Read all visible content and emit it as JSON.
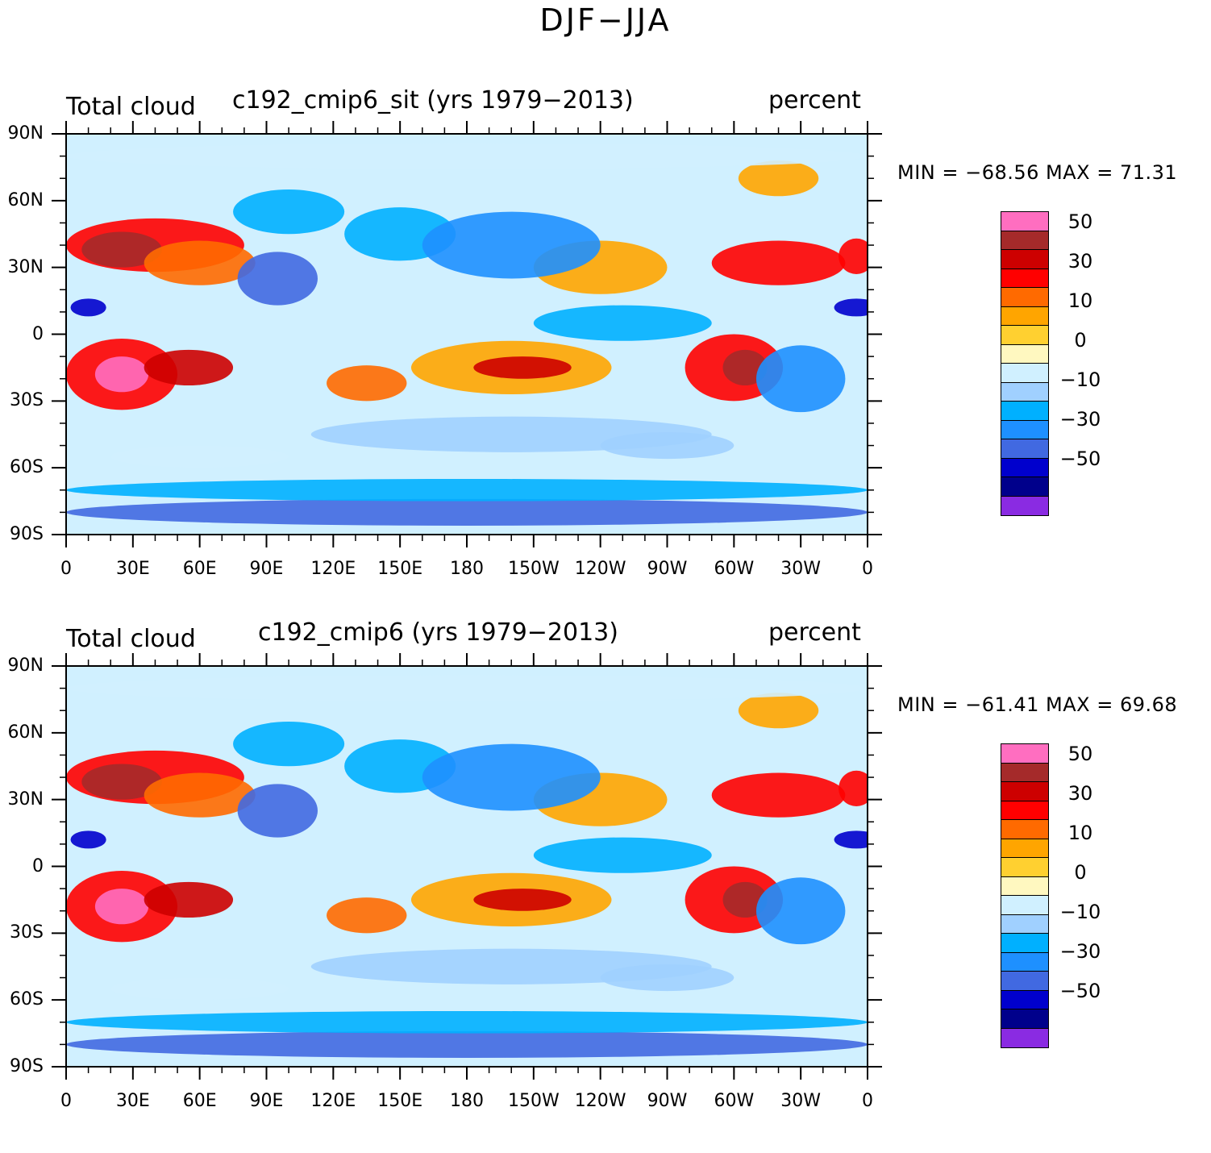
{
  "figure_title": "DJF−JJA",
  "panels": [
    {
      "left_label": "Total cloud",
      "center_label": "c192_cmip6_sit (yrs 1979−2013)",
      "right_label": "percent",
      "min_max": "MIN = −68.56  MAX =  71.31"
    },
    {
      "left_label": "Total cloud",
      "center_label": "c192_cmip6 (yrs 1979−2013)",
      "right_label": "percent",
      "min_max": "MIN = −61.41  MAX =  69.68"
    }
  ],
  "lat_labels": [
    "90N",
    "60N",
    "30N",
    "0",
    "30S",
    "60S",
    "90S"
  ],
  "lon_labels": [
    "0",
    "30E",
    "60E",
    "90E",
    "120E",
    "150E",
    "180",
    "150W",
    "120W",
    "90W",
    "60W",
    "30W",
    "0"
  ],
  "colorbar": {
    "colors": [
      "#ff6ec0",
      "#a52a2a",
      "#cd0000",
      "#ff0000",
      "#ff6a00",
      "#ffa500",
      "#ffd030",
      "#fff8c0",
      "#d0f0ff",
      "#a0d0ff",
      "#00b0ff",
      "#1e90ff",
      "#4169e1",
      "#0000cd",
      "#00008b",
      "#8a2be2"
    ],
    "labels": [
      "50",
      "30",
      "10",
      "0",
      "−10",
      "−30",
      "−50"
    ]
  }
}
